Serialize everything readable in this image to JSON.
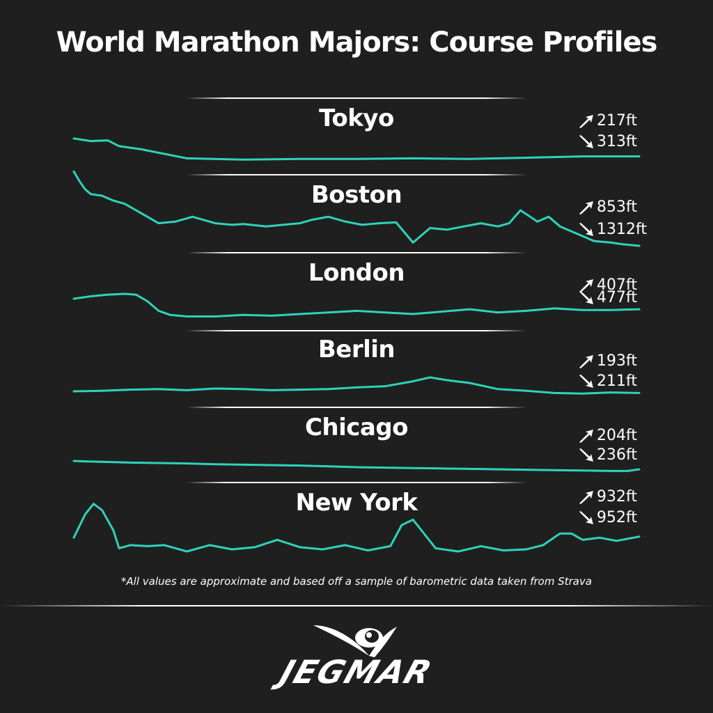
{
  "title": "World Marathon Majors: Course Profiles",
  "footnote": "*All values are approximate and based off a sample of barometric data taken from Strava",
  "brand": "JEGMAR",
  "colors": {
    "background": "#1f1f1f",
    "line": "#2ed3bb",
    "text": "#ffffff"
  },
  "icons": {
    "gain": "arrow-up-right-icon",
    "loss": "arrow-down-right-icon",
    "logo": "eye-wing-logo"
  },
  "chart_data": [
    {
      "type": "line",
      "city": "Tokyo",
      "elevation_gain": "217ft",
      "elevation_loss": "313ft",
      "x": [
        0,
        0.03,
        0.06,
        0.08,
        0.12,
        0.2,
        0.3,
        0.4,
        0.5,
        0.6,
        0.7,
        0.8,
        0.9,
        1.0
      ],
      "y": [
        0.72,
        0.64,
        0.66,
        0.48,
        0.38,
        0.1,
        0.06,
        0.08,
        0.08,
        0.1,
        0.08,
        0.12,
        0.16,
        0.16
      ]
    },
    {
      "type": "line",
      "city": "Boston",
      "elevation_gain": "853ft",
      "elevation_loss": "1312ft",
      "x": [
        0,
        0.01,
        0.02,
        0.03,
        0.05,
        0.07,
        0.09,
        0.12,
        0.15,
        0.18,
        0.21,
        0.25,
        0.28,
        0.3,
        0.34,
        0.37,
        0.4,
        0.42,
        0.45,
        0.48,
        0.51,
        0.54,
        0.57,
        0.6,
        0.63,
        0.66,
        0.69,
        0.72,
        0.75,
        0.77,
        0.79,
        0.82,
        0.84,
        0.86,
        0.88,
        0.9,
        0.92,
        0.95,
        0.97,
        1.0
      ],
      "y": [
        0.98,
        0.86,
        0.76,
        0.7,
        0.68,
        0.62,
        0.58,
        0.46,
        0.34,
        0.36,
        0.42,
        0.34,
        0.32,
        0.33,
        0.3,
        0.32,
        0.34,
        0.38,
        0.42,
        0.36,
        0.32,
        0.34,
        0.35,
        0.1,
        0.28,
        0.26,
        0.3,
        0.34,
        0.3,
        0.34,
        0.5,
        0.36,
        0.42,
        0.3,
        0.24,
        0.18,
        0.12,
        0.1,
        0.08,
        0.06
      ]
    },
    {
      "type": "line",
      "city": "London",
      "elevation_gain": "407ft",
      "elevation_loss": "477ft",
      "x": [
        0,
        0.03,
        0.06,
        0.09,
        0.11,
        0.13,
        0.15,
        0.17,
        0.2,
        0.25,
        0.3,
        0.35,
        0.4,
        0.45,
        0.5,
        0.55,
        0.6,
        0.65,
        0.7,
        0.75,
        0.8,
        0.85,
        0.9,
        0.95,
        1.0
      ],
      "y": [
        0.5,
        0.56,
        0.6,
        0.62,
        0.6,
        0.44,
        0.2,
        0.1,
        0.06,
        0.06,
        0.1,
        0.08,
        0.12,
        0.16,
        0.2,
        0.16,
        0.12,
        0.18,
        0.24,
        0.16,
        0.2,
        0.26,
        0.22,
        0.22,
        0.24
      ]
    },
    {
      "type": "line",
      "city": "Berlin",
      "elevation_gain": "193ft",
      "elevation_loss": "211ft",
      "x": [
        0,
        0.05,
        0.1,
        0.15,
        0.2,
        0.25,
        0.3,
        0.35,
        0.4,
        0.45,
        0.5,
        0.55,
        0.6,
        0.63,
        0.66,
        0.7,
        0.75,
        0.8,
        0.85,
        0.9,
        0.95,
        1.0
      ],
      "y": [
        0.2,
        0.22,
        0.26,
        0.28,
        0.24,
        0.3,
        0.28,
        0.24,
        0.26,
        0.28,
        0.34,
        0.38,
        0.56,
        0.7,
        0.6,
        0.5,
        0.28,
        0.22,
        0.14,
        0.12,
        0.16,
        0.14
      ]
    },
    {
      "type": "line",
      "city": "Chicago",
      "elevation_gain": "204ft",
      "elevation_loss": "236ft",
      "x": [
        0,
        0.02,
        0.05,
        0.1,
        0.15,
        0.2,
        0.25,
        0.3,
        0.35,
        0.4,
        0.45,
        0.5,
        0.55,
        0.6,
        0.65,
        0.7,
        0.75,
        0.8,
        0.85,
        0.9,
        0.95,
        0.98,
        1.0
      ],
      "y": [
        0.6,
        0.58,
        0.56,
        0.52,
        0.5,
        0.48,
        0.44,
        0.42,
        0.4,
        0.38,
        0.34,
        0.3,
        0.28,
        0.26,
        0.24,
        0.22,
        0.2,
        0.18,
        0.16,
        0.14,
        0.12,
        0.12,
        0.2
      ]
    },
    {
      "type": "line",
      "city": "New York",
      "elevation_gain": "932ft",
      "elevation_loss": "952ft",
      "x": [
        0,
        0.02,
        0.035,
        0.05,
        0.07,
        0.08,
        0.1,
        0.13,
        0.16,
        0.2,
        0.24,
        0.28,
        0.32,
        0.36,
        0.4,
        0.44,
        0.48,
        0.52,
        0.56,
        0.58,
        0.6,
        0.64,
        0.68,
        0.72,
        0.76,
        0.8,
        0.83,
        0.86,
        0.88,
        0.9,
        0.93,
        0.96,
        1.0
      ],
      "y": [
        0.26,
        0.7,
        0.9,
        0.78,
        0.4,
        0.06,
        0.12,
        0.1,
        0.12,
        0.0,
        0.12,
        0.04,
        0.08,
        0.22,
        0.08,
        0.04,
        0.12,
        0.02,
        0.1,
        0.5,
        0.6,
        0.06,
        0.0,
        0.1,
        0.02,
        0.04,
        0.12,
        0.34,
        0.34,
        0.22,
        0.26,
        0.2,
        0.28
      ]
    }
  ]
}
